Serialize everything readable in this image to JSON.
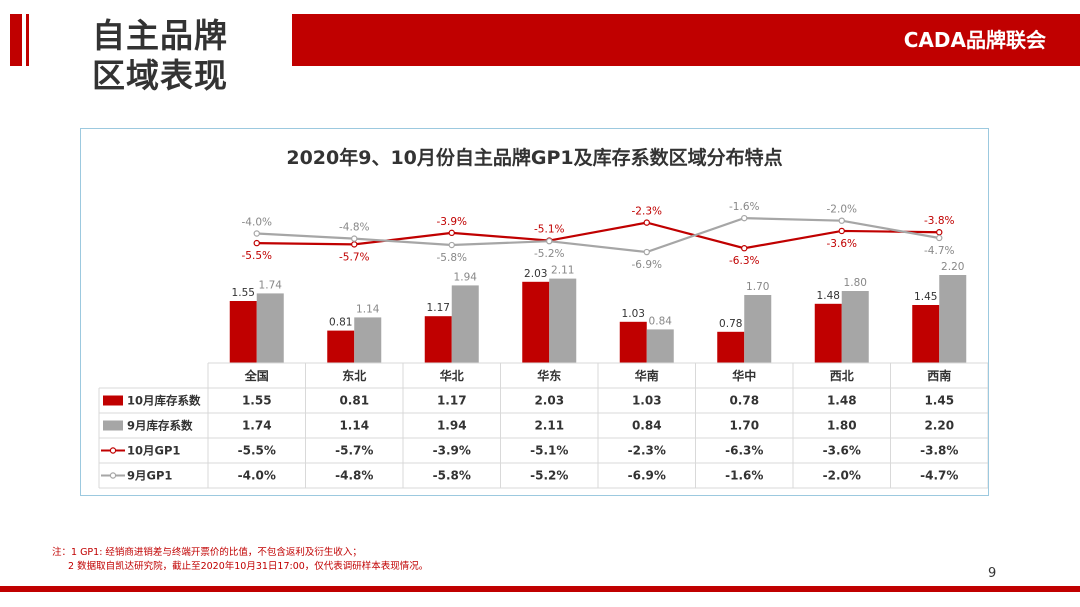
{
  "header": {
    "title_line1": "自主品牌",
    "title_line2": "区域表现",
    "brand": "CADA品牌联会"
  },
  "colors": {
    "accent": "#c00000",
    "oct_stock": "#c00000",
    "sep_stock": "#a6a6a6",
    "oct_gp1": "#c00000",
    "sep_gp1": "#a6a6a6"
  },
  "chart_data": {
    "type": "bar",
    "title": "2020年9、10月份自主品牌GP1及库存系数区域分布特点",
    "categories": [
      "全国",
      "东北",
      "华北",
      "华东",
      "华南",
      "华中",
      "西北",
      "西南"
    ],
    "series": [
      {
        "name": "10月库存系数",
        "type": "bar",
        "values": [
          1.55,
          0.81,
          1.17,
          2.03,
          1.03,
          0.78,
          1.48,
          1.45
        ],
        "labels": [
          "1.55",
          "0.81",
          "1.17",
          "2.03",
          "1.03",
          "0.78",
          "1.48",
          "1.45"
        ]
      },
      {
        "name": "9月库存系数",
        "type": "bar",
        "values": [
          1.74,
          1.14,
          1.94,
          2.11,
          0.84,
          1.7,
          1.8,
          2.2
        ],
        "labels": [
          "1.74",
          "1.14",
          "1.94",
          "2.11",
          "0.84",
          "1.70",
          "1.80",
          "2.20"
        ]
      },
      {
        "name": "10月GP1",
        "type": "line",
        "values": [
          -5.5,
          -5.7,
          -3.9,
          -5.1,
          -2.3,
          -6.3,
          -3.6,
          -3.8
        ],
        "labels": [
          "-5.5%",
          "-5.7%",
          "-3.9%",
          "-5.1%",
          "-2.3%",
          "-6.3%",
          "-3.6%",
          "-3.8%"
        ]
      },
      {
        "name": "9月GP1",
        "type": "line",
        "values": [
          -4.0,
          -4.8,
          -5.8,
          -5.2,
          -6.9,
          -1.6,
          -2.0,
          -4.7
        ],
        "labels": [
          "-4.0%",
          "-4.8%",
          "-5.8%",
          "-5.2%",
          "-6.9%",
          "-1.6%",
          "-2.0%",
          "-4.7%"
        ]
      }
    ],
    "legend": "data-table"
  },
  "note": {
    "line1": "注：1 GP1: 经销商进销差与终端开票价的比值，不包含返利及衍生收入；",
    "line2": "2 数据取自凯达研究院，截止至2020年10月31日17:00，仅代表调研样本表现情况。"
  },
  "page_number": "9"
}
